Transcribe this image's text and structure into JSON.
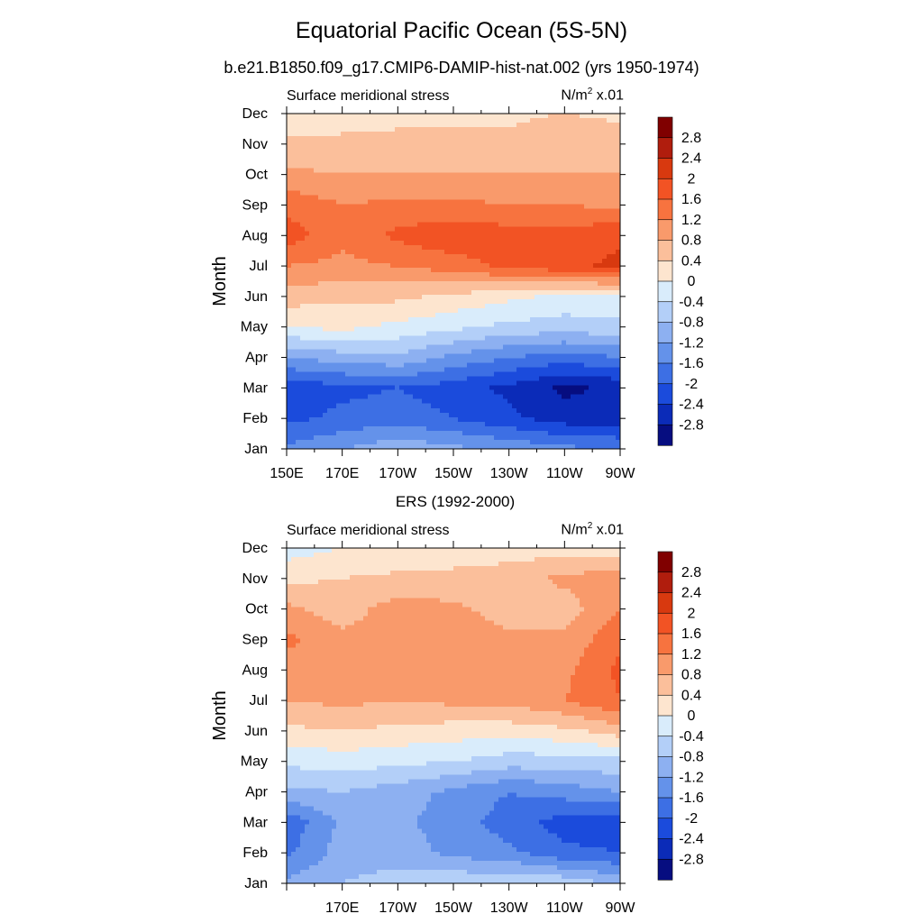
{
  "main_title": "Equatorial Pacific Ocean (5S-5N)",
  "subtitle": "b.e21.B1850.f09_g17.CMIP6-DAMIP-hist-nat.002 (yrs 1950-1974)",
  "colorbar": {
    "labels": [
      "2.8",
      "2.4",
      "2",
      "1.6",
      "1.2",
      "0.8",
      "0.4",
      "0",
      "-0.4",
      "-0.8",
      "-1.2",
      "-1.6",
      "-2",
      "-2.4",
      "-2.8"
    ],
    "colors_top_to_bottom": [
      "#800000",
      "#b01d0d",
      "#d8390f",
      "#f25324",
      "#f7733f",
      "#f99a6b",
      "#fbbf9b",
      "#fde5cf",
      "#d9ecfb",
      "#b3cff8",
      "#8db0f1",
      "#6492ea",
      "#3d6fe4",
      "#1b4bdc",
      "#0b2bb8",
      "#060d80"
    ]
  },
  "chart_data": [
    {
      "type": "heatmap",
      "subtitle": "",
      "left_label": "Surface meridional stress",
      "units_base": "N/m",
      "units_exp": "2",
      "units_scale": " x.01",
      "ylabel": "Month",
      "yticks": [
        "Jan",
        "Feb",
        "Mar",
        "Apr",
        "May",
        "Jun",
        "Jul",
        "Aug",
        "Sep",
        "Oct",
        "Nov",
        "Dec"
      ],
      "xticks": [
        "150E",
        "170E",
        "170W",
        "150W",
        "130W",
        "110W",
        "90W"
      ],
      "xlim": [
        150,
        270
      ],
      "ylim": [
        1,
        12
      ],
      "longitudes": [
        150,
        170,
        190,
        210,
        230,
        250,
        270
      ],
      "months": [
        1,
        2,
        3,
        4,
        5,
        6,
        7,
        8,
        9,
        10,
        11,
        12
      ],
      "values": [
        [
          -1.5,
          -1.2,
          -0.9,
          -1.1,
          -1.3,
          -1.5,
          -1.6
        ],
        [
          -2.1,
          -1.9,
          -1.8,
          -2.0,
          -2.3,
          -2.6,
          -2.7
        ],
        [
          -2.3,
          -2.1,
          -2.0,
          -2.2,
          -2.5,
          -2.9,
          -2.7
        ],
        [
          -1.2,
          -1.0,
          -0.9,
          -1.3,
          -1.6,
          -1.8,
          -1.6
        ],
        [
          0.0,
          0.1,
          -0.1,
          -0.3,
          -0.5,
          -0.6,
          -0.5
        ],
        [
          0.6,
          0.5,
          0.5,
          0.3,
          0.1,
          -0.1,
          -0.1
        ],
        [
          1.2,
          1.1,
          1.2,
          1.4,
          1.7,
          1.9,
          2.1
        ],
        [
          1.8,
          1.3,
          1.7,
          1.9,
          1.8,
          1.8,
          1.9
        ],
        [
          1.5,
          1.2,
          1.3,
          1.3,
          1.2,
          1.2,
          1.1
        ],
        [
          0.9,
          0.8,
          0.8,
          0.8,
          0.8,
          0.8,
          0.8
        ],
        [
          0.5,
          0.5,
          0.5,
          0.5,
          0.5,
          0.8,
          0.6
        ],
        [
          0.1,
          0.2,
          0.3,
          0.3,
          0.3,
          0.4,
          0.3
        ]
      ]
    },
    {
      "type": "heatmap",
      "subtitle": "ERS (1992-2000)",
      "left_label": "Surface meridional stress",
      "units_base": "N/m",
      "units_exp": "2",
      "units_scale": " x.01",
      "ylabel": "Month",
      "yticks": [
        "Jan",
        "Feb",
        "Mar",
        "Apr",
        "May",
        "Jun",
        "Jul",
        "Aug",
        "Sep",
        "Oct",
        "Nov",
        "Dec"
      ],
      "xticks": [
        "170E",
        "170W",
        "150W",
        "130W",
        "110W",
        "90W"
      ],
      "xlim": [
        150,
        270
      ],
      "ylim": [
        1,
        12
      ],
      "longitudes": [
        150,
        170,
        190,
        210,
        230,
        250,
        270
      ],
      "months": [
        1,
        2,
        3,
        4,
        5,
        6,
        7,
        8,
        9,
        10,
        11,
        12
      ],
      "values": [
        [
          -1.1,
          -0.8,
          -0.6,
          -0.5,
          -0.4,
          -0.5,
          -0.9
        ],
        [
          -1.7,
          -1.0,
          -1.0,
          -1.3,
          -1.5,
          -1.9,
          -2.0
        ],
        [
          -1.9,
          -1.1,
          -1.1,
          -1.4,
          -1.8,
          -2.2,
          -2.2
        ],
        [
          -0.9,
          -0.8,
          -1.0,
          -1.3,
          -1.6,
          -1.4,
          -1.2
        ],
        [
          -0.3,
          -0.2,
          -0.3,
          -0.4,
          -0.6,
          -0.6,
          -0.5
        ],
        [
          0.3,
          0.4,
          0.3,
          0.2,
          0.2,
          0.3,
          0.6
        ],
        [
          0.8,
          0.9,
          0.8,
          0.9,
          0.9,
          1.2,
          1.6
        ],
        [
          1.0,
          1.0,
          1.0,
          1.0,
          1.0,
          1.1,
          1.7
        ],
        [
          1.3,
          0.9,
          1.0,
          1.1,
          0.9,
          0.9,
          1.5
        ],
        [
          0.9,
          0.6,
          1.0,
          0.9,
          0.6,
          0.6,
          1.2
        ],
        [
          0.3,
          0.4,
          0.5,
          0.5,
          0.6,
          0.9,
          1.0
        ],
        [
          -0.2,
          0.0,
          0.0,
          0.2,
          0.2,
          0.2,
          0.2
        ]
      ]
    }
  ]
}
